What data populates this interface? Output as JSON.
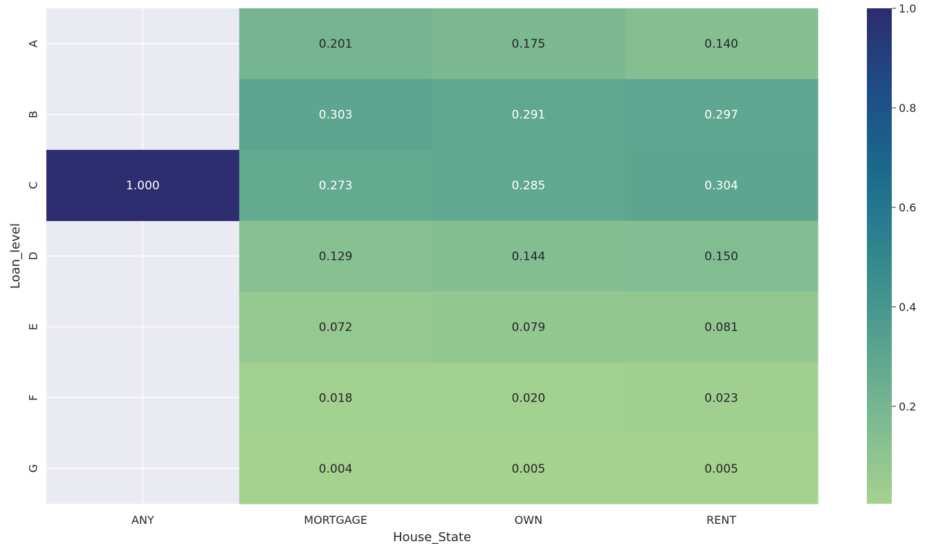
{
  "chart_data": {
    "type": "heatmap",
    "xlabel": "House_State",
    "ylabel": "Loan_level",
    "x_categories": [
      "ANY",
      "MORTGAGE",
      "OWN",
      "RENT"
    ],
    "y_categories": [
      "A",
      "B",
      "C",
      "D",
      "E",
      "F",
      "G"
    ],
    "values": [
      [
        null,
        0.201,
        0.175,
        0.14
      ],
      [
        null,
        0.303,
        0.291,
        0.297
      ],
      [
        1.0,
        0.273,
        0.285,
        0.304
      ],
      [
        null,
        0.129,
        0.144,
        0.15
      ],
      [
        null,
        0.072,
        0.079,
        0.081
      ],
      [
        null,
        0.018,
        0.02,
        0.023
      ],
      [
        null,
        0.004,
        0.005,
        0.005
      ]
    ],
    "value_format": "0.000",
    "colorbar": {
      "ticks": [
        "0.2",
        "0.4",
        "0.6",
        "0.8",
        "1.0"
      ],
      "tick_values": [
        0.2,
        0.4,
        0.6,
        0.8,
        1.0
      ],
      "range": [
        0.004,
        1.0
      ]
    },
    "colormap": "crest",
    "colormap_stops": [
      "#a5d28f",
      "#7dba91",
      "#55a08f",
      "#32878e",
      "#1b6b8d",
      "#1e4d86",
      "#2c2c6e"
    ],
    "missing_color": "#eaeaf2",
    "grid": true
  }
}
